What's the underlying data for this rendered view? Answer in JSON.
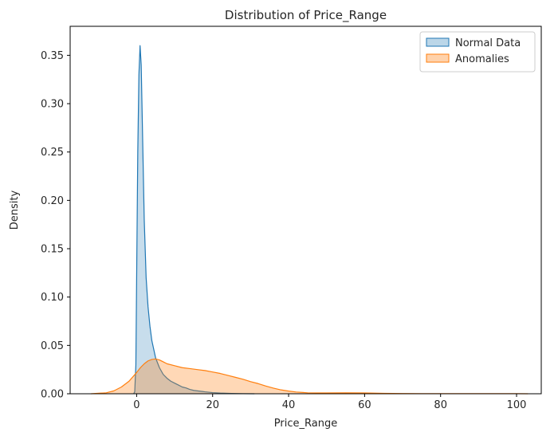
{
  "chart_data": {
    "type": "area",
    "title": "Distribution of Price_Range",
    "xlabel": "Price_Range",
    "ylabel": "Density",
    "xlim": [
      -17.5,
      106.5
    ],
    "ylim": [
      0,
      0.38
    ],
    "xticks": [
      0,
      20,
      40,
      60,
      80,
      100
    ],
    "yticks": [
      0.0,
      0.05,
      0.1,
      0.15,
      0.2,
      0.25,
      0.3,
      0.35
    ],
    "ytick_format": 2,
    "grid": false,
    "legend_position": "top-right",
    "series": [
      {
        "name": "Normal Data",
        "color": "#1f77b4",
        "fill_opacity": 0.25,
        "points": [
          [
            -0.8,
            0.0
          ],
          [
            -0.5,
            0.002
          ],
          [
            -0.2,
            0.03
          ],
          [
            0.0,
            0.12
          ],
          [
            0.3,
            0.25
          ],
          [
            0.6,
            0.33
          ],
          [
            0.9,
            0.36
          ],
          [
            1.2,
            0.34
          ],
          [
            1.6,
            0.26
          ],
          [
            2.0,
            0.18
          ],
          [
            2.5,
            0.12
          ],
          [
            3.0,
            0.09
          ],
          [
            3.5,
            0.07
          ],
          [
            4.0,
            0.055
          ],
          [
            5.0,
            0.037
          ],
          [
            6.0,
            0.027
          ],
          [
            7.0,
            0.02
          ],
          [
            8.0,
            0.016
          ],
          [
            9.0,
            0.013
          ],
          [
            10.0,
            0.011
          ],
          [
            11.0,
            0.009
          ],
          [
            12.0,
            0.007
          ],
          [
            13.0,
            0.006
          ],
          [
            14.0,
            0.0045
          ],
          [
            15.0,
            0.0035
          ],
          [
            16.0,
            0.003
          ],
          [
            18.0,
            0.002
          ],
          [
            20.0,
            0.0012
          ],
          [
            22.0,
            0.0007
          ],
          [
            25.0,
            0.0003
          ],
          [
            28.0,
            0.0001
          ],
          [
            31.0,
            0.0
          ]
        ]
      },
      {
        "name": "Anomalies",
        "color": "#ff7f0e",
        "fill_opacity": 0.3,
        "points": [
          [
            -12.0,
            0.0
          ],
          [
            -10.0,
            0.0005
          ],
          [
            -8.0,
            0.001
          ],
          [
            -6.0,
            0.003
          ],
          [
            -4.0,
            0.007
          ],
          [
            -2.0,
            0.013
          ],
          [
            0.0,
            0.022
          ],
          [
            1.0,
            0.027
          ],
          [
            2.0,
            0.031
          ],
          [
            3.0,
            0.034
          ],
          [
            4.0,
            0.0355
          ],
          [
            5.0,
            0.036
          ],
          [
            6.0,
            0.035
          ],
          [
            7.0,
            0.033
          ],
          [
            8.0,
            0.031
          ],
          [
            10.0,
            0.029
          ],
          [
            12.0,
            0.027
          ],
          [
            14.0,
            0.026
          ],
          [
            16.0,
            0.025
          ],
          [
            18.0,
            0.024
          ],
          [
            20.0,
            0.0225
          ],
          [
            22.0,
            0.021
          ],
          [
            24.0,
            0.019
          ],
          [
            26.0,
            0.017
          ],
          [
            28.0,
            0.015
          ],
          [
            30.0,
            0.0125
          ],
          [
            32.0,
            0.0105
          ],
          [
            34.0,
            0.008
          ],
          [
            36.0,
            0.0058
          ],
          [
            38.0,
            0.004
          ],
          [
            40.0,
            0.0028
          ],
          [
            42.0,
            0.0018
          ],
          [
            45.0,
            0.001
          ],
          [
            50.0,
            0.0008
          ],
          [
            55.0,
            0.0009
          ],
          [
            60.0,
            0.0008
          ],
          [
            65.0,
            0.0004
          ],
          [
            70.0,
            0.0002
          ],
          [
            75.0,
            0.0001
          ],
          [
            80.0,
            0.0001
          ],
          [
            90.0,
            0.0001
          ],
          [
            100.0,
            0.0001
          ],
          [
            103.0,
            0.0
          ]
        ]
      }
    ]
  }
}
